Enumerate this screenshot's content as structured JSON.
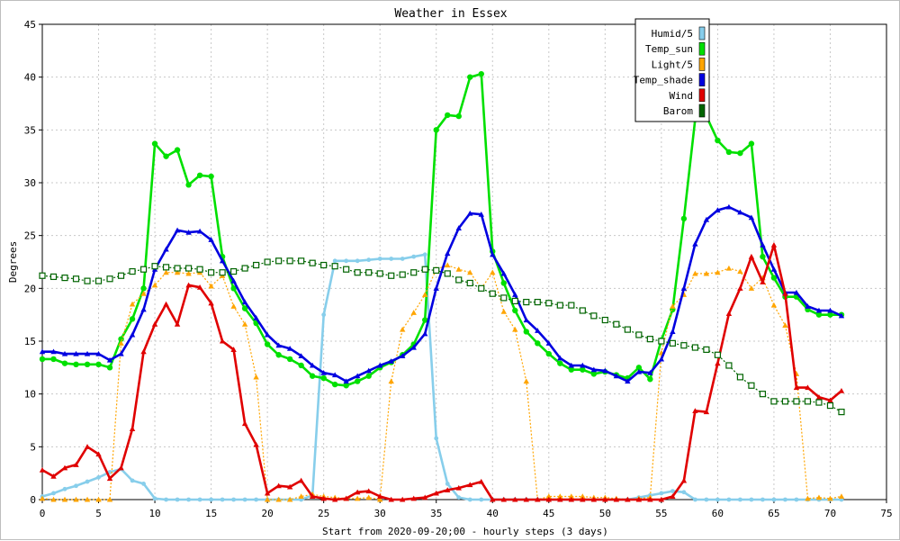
{
  "chart_data": {
    "type": "line",
    "title": "Weather in Essex",
    "xlabel": "Start from 2020-09-20;00 - hourly steps (3 days)",
    "ylabel": "Degrees",
    "xlim": [
      0,
      75
    ],
    "ylim": [
      0,
      45
    ],
    "xticks": [
      0,
      5,
      10,
      15,
      20,
      25,
      30,
      35,
      40,
      45,
      50,
      55,
      60,
      65,
      70,
      75
    ],
    "yticks": [
      0,
      5,
      10,
      15,
      20,
      25,
      30,
      35,
      40,
      45
    ],
    "grid": true,
    "legend_position": "top-right",
    "x": [
      0,
      1,
      2,
      3,
      4,
      5,
      6,
      7,
      8,
      9,
      10,
      11,
      12,
      13,
      14,
      15,
      16,
      17,
      18,
      19,
      20,
      21,
      22,
      23,
      24,
      25,
      26,
      27,
      28,
      29,
      30,
      31,
      32,
      33,
      34,
      35,
      36,
      37,
      38,
      39,
      40,
      41,
      42,
      43,
      44,
      45,
      46,
      47,
      48,
      49,
      50,
      51,
      52,
      53,
      54,
      55,
      56,
      57,
      58,
      59,
      60,
      61,
      62,
      63,
      64,
      65,
      66,
      67,
      68,
      69,
      70,
      71
    ],
    "series": [
      {
        "name": "Humid/5",
        "color": "#87ceeb",
        "marker": "circle-small",
        "values": [
          0.3,
          0.6,
          1.0,
          1.3,
          1.7,
          2.1,
          2.6,
          2.9,
          1.8,
          1.5,
          0.1,
          0,
          0,
          0,
          0,
          0,
          0,
          0,
          0,
          0,
          0,
          0,
          0,
          0,
          0.4,
          17.5,
          22.6,
          22.6,
          22.6,
          22.7,
          22.8,
          22.8,
          22.8,
          23.0,
          23.2,
          5.8,
          1.5,
          0.2,
          0,
          0,
          0,
          0,
          0,
          0,
          0,
          0,
          0,
          0,
          0,
          0,
          0,
          0,
          0,
          0.2,
          0.4,
          0.6,
          0.8,
          0.7,
          0,
          0,
          0,
          0,
          0,
          0,
          0,
          0,
          0,
          0,
          0,
          0,
          0,
          0
        ]
      },
      {
        "name": "Temp_sun",
        "color": "#00e000",
        "marker": "circle",
        "values": [
          13.3,
          13.3,
          12.9,
          12.8,
          12.8,
          12.8,
          12.5,
          15.2,
          17.1,
          20.0,
          33.7,
          32.5,
          33.1,
          29.8,
          30.7,
          30.6,
          23.0,
          20.0,
          18.1,
          16.7,
          14.7,
          13.7,
          13.3,
          12.7,
          11.7,
          11.5,
          10.9,
          10.8,
          11.2,
          11.7,
          12.5,
          13.0,
          13.7,
          14.7,
          17.0,
          35.0,
          36.4,
          36.3,
          40.0,
          40.3,
          23.5,
          20.5,
          17.9,
          15.9,
          14.8,
          13.8,
          12.9,
          12.3,
          12.3,
          11.9,
          12.1,
          11.8,
          11.5,
          12.5,
          11.4,
          15.1,
          18.0,
          26.6,
          36.0,
          36.3,
          34.0,
          32.9,
          32.8,
          33.7,
          23.0,
          21.0,
          19.2,
          19.2,
          18.0,
          17.5,
          17.5,
          17.5
        ]
      },
      {
        "name": "Light/5",
        "color": "#ffa500",
        "marker": "triangle",
        "values": [
          0.1,
          0,
          0,
          0,
          0,
          0,
          0,
          14.8,
          18.5,
          19.5,
          20.3,
          21.5,
          21.5,
          21.4,
          21.5,
          20.2,
          21.2,
          18.3,
          16.6,
          11.6,
          0,
          0,
          0,
          0.3,
          0.5,
          0.3,
          0.2,
          0.1,
          0.1,
          0.2,
          0,
          11.2,
          16.1,
          17.7,
          19.4,
          21.8,
          22.2,
          21.8,
          21.5,
          20.0,
          21.5,
          17.8,
          16.1,
          11.2,
          0,
          0.3,
          0.3,
          0.3,
          0.3,
          0.2,
          0.2,
          0.1,
          0,
          0.1,
          0.2,
          13.9,
          18.3,
          19.4,
          21.4,
          21.4,
          21.5,
          21.9,
          21.6,
          20.0,
          21.0,
          18.4,
          16.5,
          11.9,
          0.1,
          0.2,
          0.1,
          0.3
        ]
      },
      {
        "name": "Temp_shade",
        "color": "#0000e0",
        "marker": "triangle",
        "values": [
          14.0,
          14.0,
          13.8,
          13.8,
          13.8,
          13.8,
          13.2,
          13.8,
          15.6,
          18.0,
          21.8,
          23.7,
          25.5,
          25.3,
          25.4,
          24.6,
          22.6,
          20.7,
          18.7,
          17.2,
          15.6,
          14.6,
          14.3,
          13.6,
          12.7,
          12.0,
          11.8,
          11.2,
          11.7,
          12.2,
          12.7,
          13.1,
          13.6,
          14.4,
          15.7,
          20.0,
          23.3,
          25.7,
          27.1,
          27.0,
          23.2,
          21.4,
          19.4,
          17.0,
          16.0,
          14.8,
          13.4,
          12.7,
          12.7,
          12.3,
          12.2,
          11.7,
          11.2,
          12.1,
          12.0,
          13.3,
          15.9,
          20.0,
          24.2,
          26.5,
          27.4,
          27.7,
          27.2,
          26.7,
          24.1,
          21.8,
          19.6,
          19.6,
          18.3,
          17.9,
          17.9,
          17.4
        ]
      },
      {
        "name": "Wind",
        "color": "#e00000",
        "marker": "triangle",
        "values": [
          2.8,
          2.2,
          3.0,
          3.3,
          5.0,
          4.3,
          2.0,
          3.0,
          6.7,
          14.0,
          16.6,
          18.5,
          16.6,
          20.3,
          20.1,
          18.6,
          15.0,
          14.2,
          7.2,
          5.2,
          0.6,
          1.3,
          1.2,
          1.8,
          0.3,
          0.1,
          0,
          0.1,
          0.7,
          0.8,
          0.3,
          0,
          0,
          0.1,
          0.2,
          0.6,
          0.9,
          1.1,
          1.4,
          1.7,
          0,
          0,
          0,
          0,
          0,
          0,
          0,
          0,
          0,
          0,
          0,
          0,
          0,
          0,
          0,
          0,
          0.3,
          1.8,
          8.4,
          8.3,
          12.9,
          17.6,
          20.0,
          23.0,
          20.6,
          24.1,
          19.5,
          10.6,
          10.6,
          9.7,
          9.4,
          10.3
        ]
      },
      {
        "name": "Barom",
        "color": "#006400",
        "marker": "square-open",
        "values": [
          21.2,
          21.1,
          21.0,
          20.9,
          20.7,
          20.7,
          20.9,
          21.2,
          21.6,
          21.8,
          22.1,
          22.0,
          21.9,
          21.9,
          21.8,
          21.5,
          21.5,
          21.6,
          21.9,
          22.2,
          22.5,
          22.6,
          22.6,
          22.6,
          22.4,
          22.2,
          22.1,
          21.8,
          21.5,
          21.5,
          21.4,
          21.2,
          21.3,
          21.5,
          21.8,
          21.7,
          21.4,
          20.8,
          20.5,
          20.0,
          19.5,
          19.1,
          18.8,
          18.7,
          18.7,
          18.6,
          18.4,
          18.4,
          17.9,
          17.4,
          17.0,
          16.6,
          16.1,
          15.6,
          15.2,
          15.0,
          14.8,
          14.6,
          14.4,
          14.2,
          13.7,
          12.7,
          11.6,
          10.8,
          10.0,
          9.3,
          9.3,
          9.3,
          9.3,
          9.2,
          8.9,
          8.3
        ]
      }
    ]
  }
}
